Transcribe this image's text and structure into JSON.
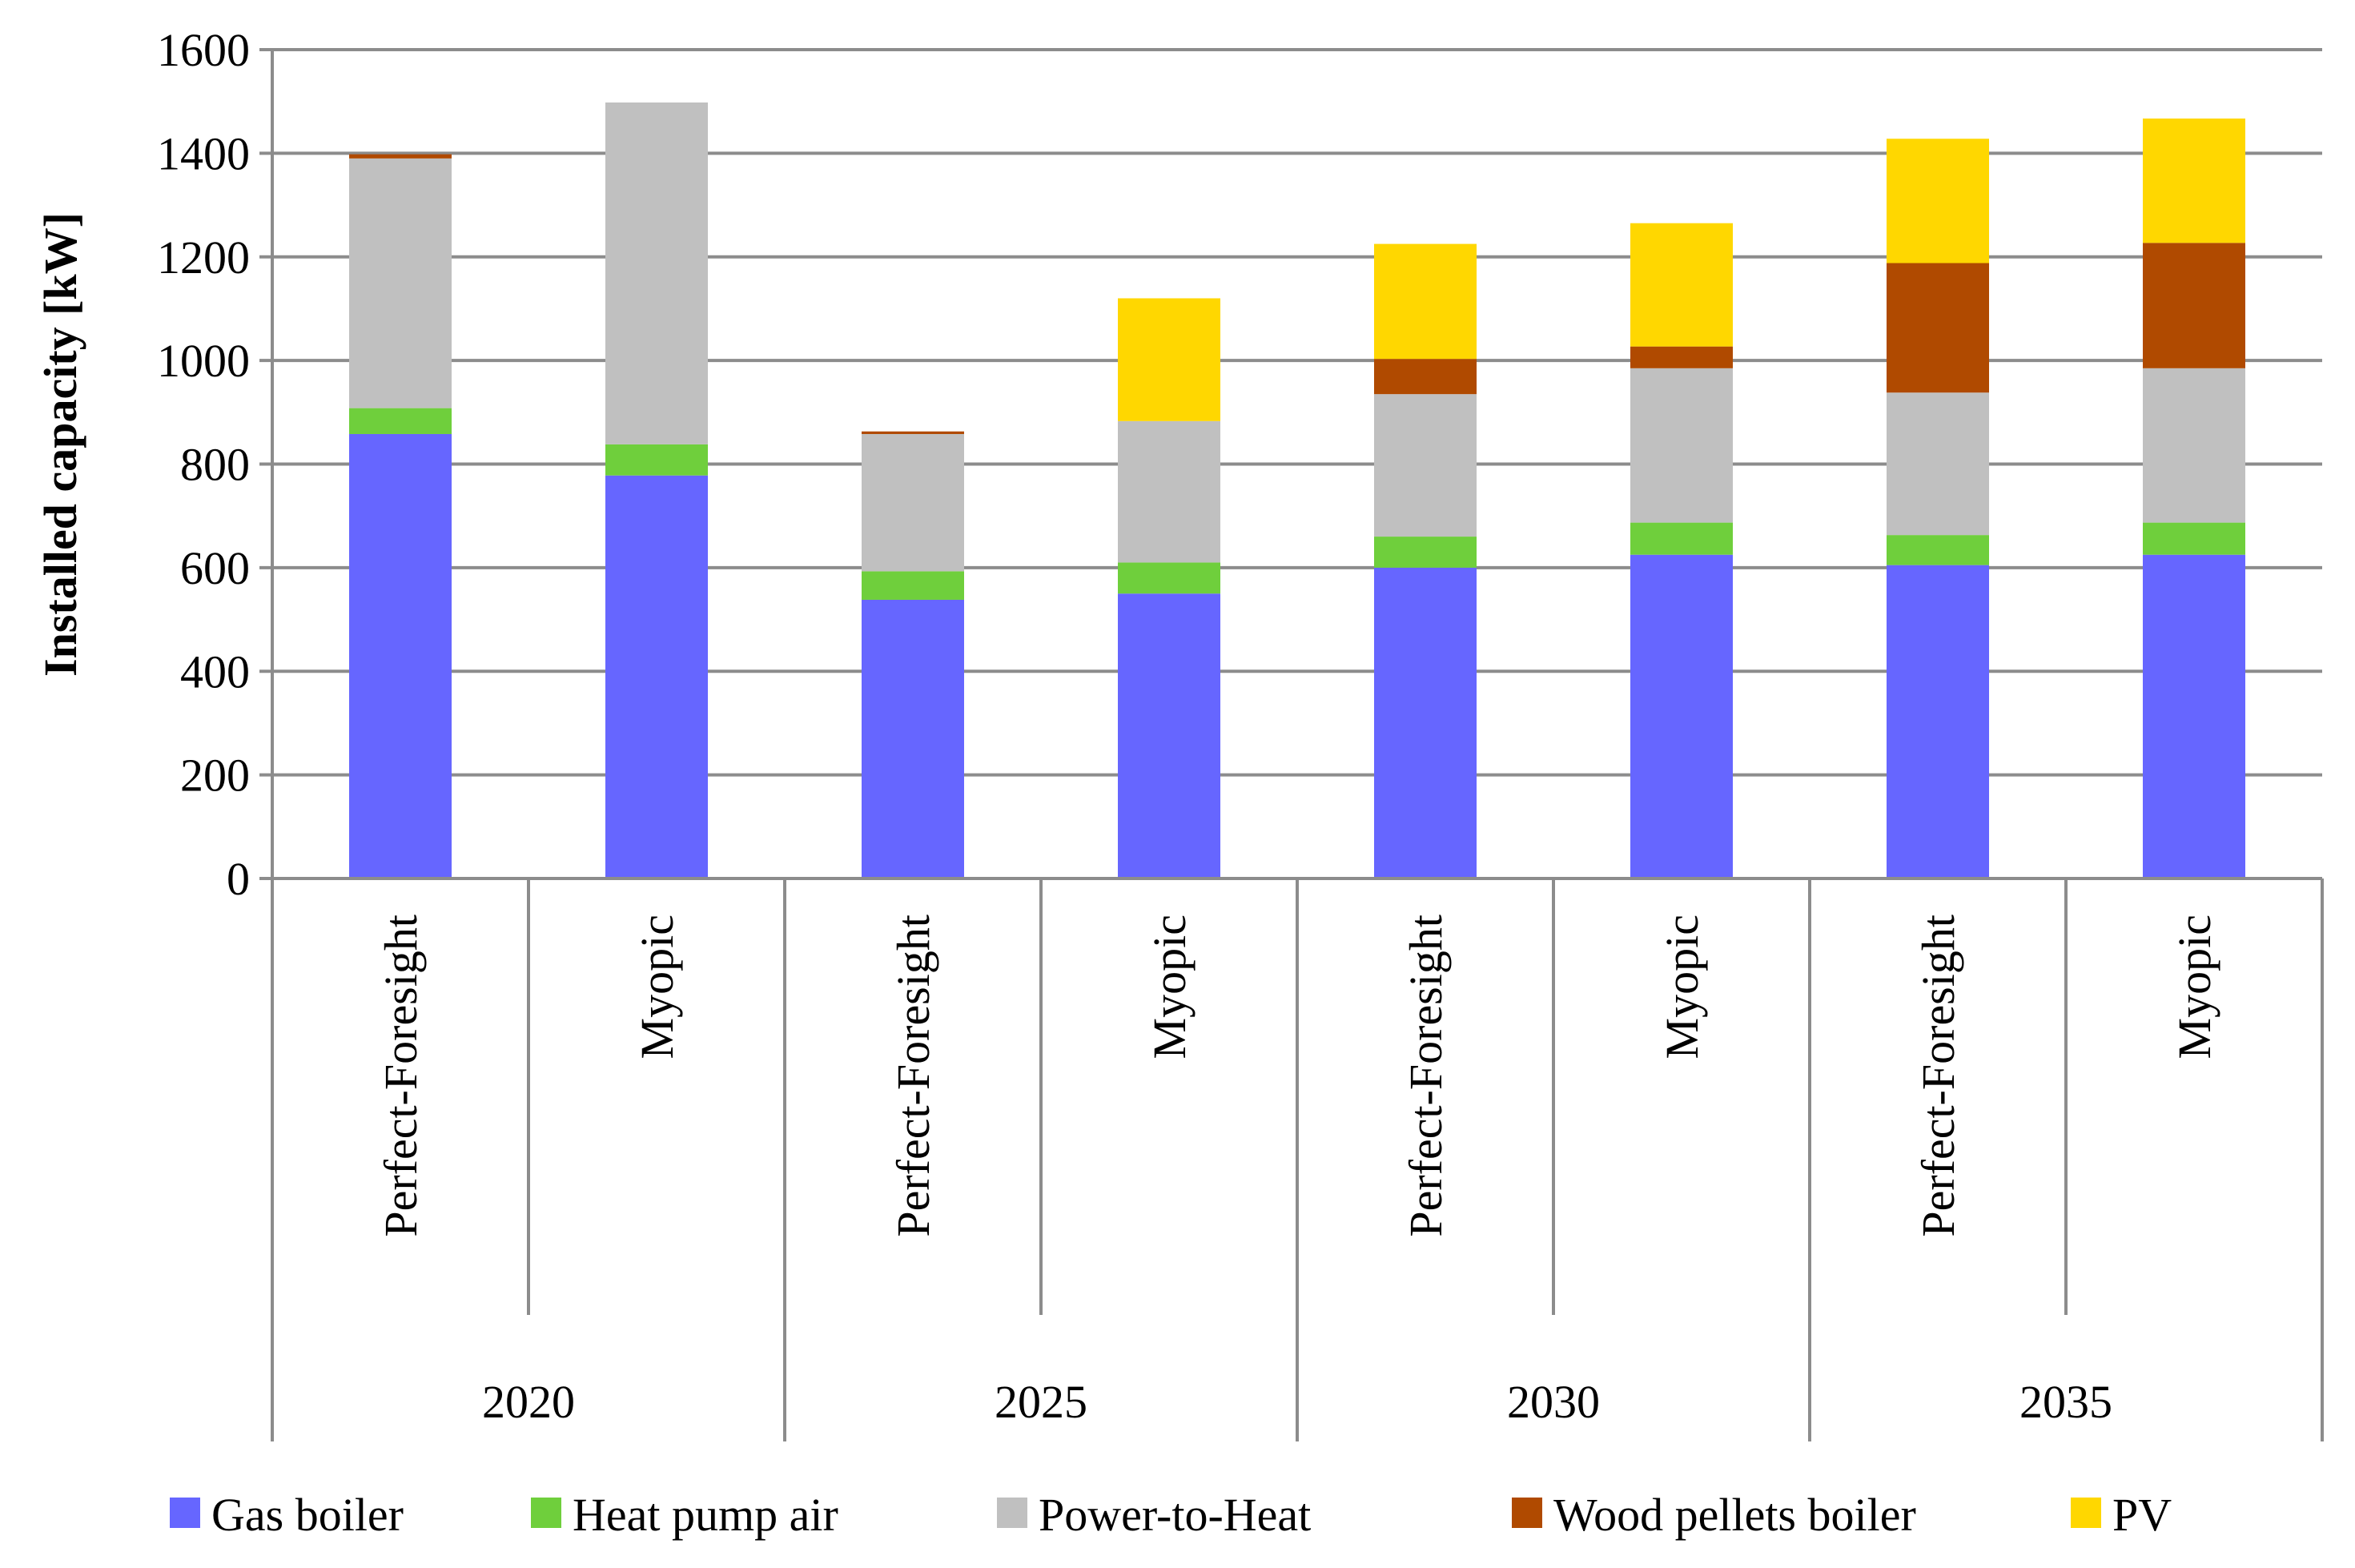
{
  "chart_data": {
    "type": "bar",
    "stacked": true,
    "title": "",
    "xlabel": "",
    "ylabel": "Installed capacity [kW]",
    "ylim": [
      0,
      1600
    ],
    "yticks": [
      0,
      200,
      400,
      600,
      800,
      1000,
      1200,
      1400,
      1600
    ],
    "grid": true,
    "legend_position": "bottom",
    "groups": [
      {
        "label": "2020",
        "categories": [
          "Perfect-Foresight",
          "Myopic"
        ]
      },
      {
        "label": "2025",
        "categories": [
          "Perfect-Foresight",
          "Myopic"
        ]
      },
      {
        "label": "2030",
        "categories": [
          "Perfect-Foresight",
          "Myopic"
        ]
      },
      {
        "label": "2035",
        "categories": [
          "Perfect-Foresight",
          "Myopic"
        ]
      }
    ],
    "series": [
      {
        "name": "Gas boiler",
        "color": "#6666ff",
        "values": [
          858,
          778,
          538,
          550,
          600,
          625,
          605,
          625
        ]
      },
      {
        "name": "Heat pump air",
        "color": "#6fcf3c",
        "values": [
          50,
          60,
          55,
          60,
          60,
          62,
          58,
          62
        ]
      },
      {
        "name": "Power-to-Heat",
        "color": "#c0c0c0",
        "values": [
          482,
          660,
          265,
          273,
          275,
          298,
          275,
          298
        ]
      },
      {
        "name": "Wood pellets boiler",
        "color": "#b04a00",
        "values": [
          8,
          0,
          5,
          0,
          68,
          42,
          250,
          242
        ]
      },
      {
        "name": "PV",
        "color": "#ffd700",
        "values": [
          0,
          0,
          0,
          237,
          222,
          238,
          240,
          240
        ]
      }
    ]
  }
}
